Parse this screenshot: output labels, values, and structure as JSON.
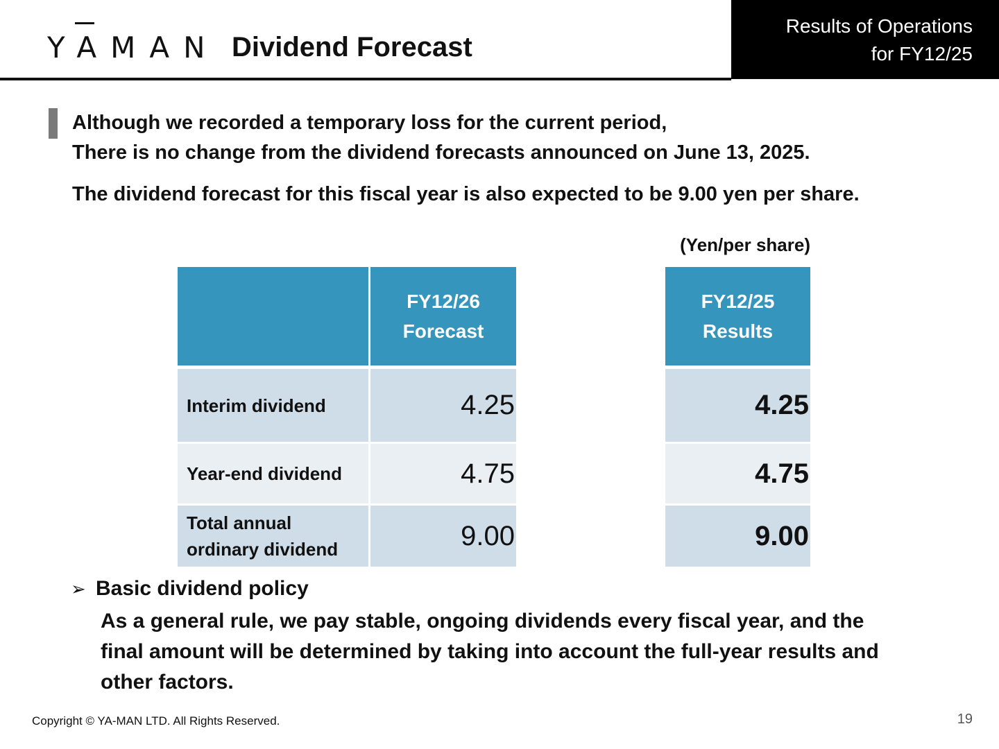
{
  "header": {
    "logo_text": "YAMAN",
    "title": "Dividend Forecast",
    "corner_line1": "Results of Operations",
    "corner_line2": "for FY12/25"
  },
  "intro": {
    "line1": "Although we recorded a temporary loss for the current period,",
    "line2": "There is no change from the dividend forecasts announced on June 13, 2025.",
    "line3": "The dividend forecast for this fiscal year is also expected to be 9.00 yen per share."
  },
  "unit_label": "(Yen/per share)",
  "forecast_table": {
    "col_header_line1": "FY12/26",
    "col_header_line2": "Forecast",
    "rows": [
      {
        "label_line1": "Interim dividend",
        "label_line2": "",
        "value": "4.25"
      },
      {
        "label_line1": "Year-end dividend",
        "label_line2": "",
        "value": "4.75"
      },
      {
        "label_line1": "Total annual",
        "label_line2": "ordinary dividend",
        "value": "9.00"
      }
    ]
  },
  "results_table": {
    "col_header_line1": "FY12/25",
    "col_header_line2": "Results",
    "values": [
      "4.25",
      "4.75",
      "9.00"
    ]
  },
  "policy": {
    "arrow": "➢",
    "title": "Basic dividend policy",
    "line1": "As a general rule, we pay stable, ongoing dividends every fiscal year, and the",
    "line2": "final amount will be determined by taking into account the full-year results and",
    "line3": "other factors."
  },
  "footer": {
    "copyright": "Copyright © YA-MAN LTD. All Rights Reserved.",
    "page_number": "19"
  },
  "colors": {
    "header_blue": "#3595bd",
    "row_dark": "#cfdde8",
    "row_light": "#e9eff3"
  }
}
